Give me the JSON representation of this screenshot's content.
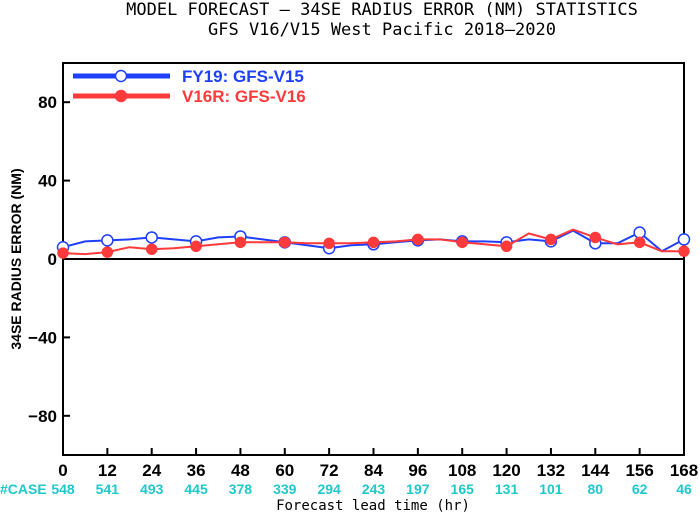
{
  "chart_data": {
    "type": "line",
    "title": "MODEL FORECAST – 34SE RADIUS ERROR (NM) STATISTICS",
    "subtitle": "GFS V16/V15 West Pacific 2018–2020",
    "xlabel": "Forecast lead time (hr)",
    "ylabel": "34SE RADIUS ERROR (NM)",
    "xlim": [
      0,
      168
    ],
    "ylim": [
      -100,
      100
    ],
    "x_ticks": [
      0,
      12,
      24,
      36,
      48,
      60,
      72,
      84,
      96,
      108,
      120,
      132,
      144,
      156,
      168
    ],
    "y_ticks": [
      80,
      40,
      0,
      -40,
      -80
    ],
    "y_tick_labels": [
      "80",
      "40",
      "0",
      "−40",
      "−80"
    ],
    "x": [
      0,
      6,
      12,
      18,
      24,
      30,
      36,
      42,
      48,
      54,
      60,
      66,
      72,
      78,
      84,
      90,
      96,
      102,
      108,
      114,
      120,
      126,
      132,
      138,
      144,
      150,
      156,
      162,
      168
    ],
    "marker_x": [
      0,
      12,
      24,
      36,
      48,
      60,
      72,
      84,
      96,
      108,
      120,
      132,
      144,
      156,
      168
    ],
    "series": [
      {
        "name": "FY19: GFS-V15",
        "color": "#1f3fff",
        "marker": "open-circle",
        "values": [
          6,
          9,
          9.5,
          10,
          11,
          10,
          9,
          11,
          11.5,
          10,
          8.5,
          7,
          5.5,
          7,
          7.5,
          8.5,
          9.5,
          10,
          9,
          9,
          8.5,
          10,
          9,
          14.5,
          8,
          8,
          13.5,
          4,
          10
        ]
      },
      {
        "name": "V16R: GFS-V16",
        "color": "#ff3a3a",
        "marker": "filled-circle",
        "values": [
          3,
          2.5,
          3.5,
          6,
          5,
          5.5,
          6.5,
          7.5,
          8.5,
          8.5,
          8.5,
          8,
          8,
          8,
          8.5,
          9,
          10,
          10,
          8.5,
          7.5,
          6.5,
          13,
          10,
          15,
          11,
          7.5,
          8.5,
          4,
          4
        ]
      }
    ],
    "case_label": "#CASE",
    "case_label_color": "#1fc9c9",
    "case_counts": [
      "548",
      "541",
      "493",
      "445",
      "378",
      "339",
      "294",
      "243",
      "197",
      "165",
      "131",
      "101",
      "80",
      "62",
      "46"
    ],
    "legend_position": "top-left",
    "grid": false,
    "zero_line": true
  }
}
